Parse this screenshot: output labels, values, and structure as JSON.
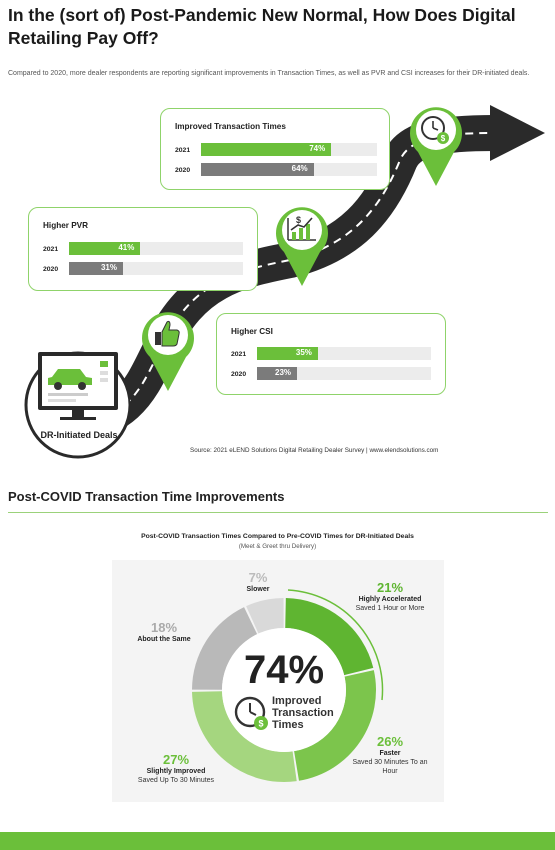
{
  "header": {
    "title": "In the (sort of) Post-Pandemic New Normal, How Does Digital Retailing Pay Off?",
    "subtitle": "Compared to 2020, more dealer respondents are reporting significant improvements in Transaction Times, as well as PVR and CSI increases for their DR-initiated deals."
  },
  "colors": {
    "green": "#6bbf3a",
    "gray": "#7b7b7b",
    "light_gray": "#cfcfcf",
    "road": "#2a2a2a"
  },
  "icons": [
    "clock-dollar-icon",
    "growth-chart-icon",
    "thumbs-up-icon",
    "car-monitor-icon"
  ],
  "dr_label": "DR-Initiated Deals",
  "source": "Source: 2021 eLEND Solutions Digital Retailing Dealer Survey  |  www.elendsolutions.com",
  "section2_title": "Post-COVID Transaction Time Improvements",
  "chart_data": [
    {
      "type": "bar",
      "title": "Improved Transaction Times",
      "categories": [
        "2021",
        "2020"
      ],
      "values": [
        74,
        64
      ],
      "value_labels": [
        "74%",
        "64%"
      ],
      "ylim": [
        0,
        100
      ]
    },
    {
      "type": "bar",
      "title": "Higher PVR",
      "categories": [
        "2021",
        "2020"
      ],
      "values": [
        41,
        31
      ],
      "value_labels": [
        "41%",
        "31%"
      ],
      "ylim": [
        0,
        100
      ]
    },
    {
      "type": "bar",
      "title": "Higher CSI",
      "categories": [
        "2021",
        "2020"
      ],
      "values": [
        35,
        23
      ],
      "value_labels": [
        "35%",
        "23%"
      ],
      "ylim": [
        0,
        100
      ]
    },
    {
      "type": "pie",
      "title": "Post-COVID Transaction Times Compared to Pre-COVID Times for DR-Initiated Deals",
      "subtitle": "(Meet & Greet thru Delivery)",
      "center_value": "74%",
      "center_label": "Improved Transaction Times",
      "slices": [
        {
          "label": "Highly Accelerated",
          "desc": "Saved 1 Hour or More",
          "value": 21,
          "pct": "21%",
          "color": "#5fb531"
        },
        {
          "label": "Faster",
          "desc": "Saved 30 Minutes To an Hour",
          "value": 26,
          "pct": "26%",
          "color": "#7cc54c"
        },
        {
          "label": "Slightly Improved",
          "desc": "Saved Up To 30 Minutes",
          "value": 27,
          "pct": "27%",
          "color": "#a5d67f"
        },
        {
          "label": "About the Same",
          "desc": "",
          "value": 18,
          "pct": "18%",
          "color": "#b9b9b9"
        },
        {
          "label": "Slower",
          "desc": "",
          "value": 7,
          "pct": "7%",
          "color": "#d9d9d9"
        }
      ]
    }
  ]
}
